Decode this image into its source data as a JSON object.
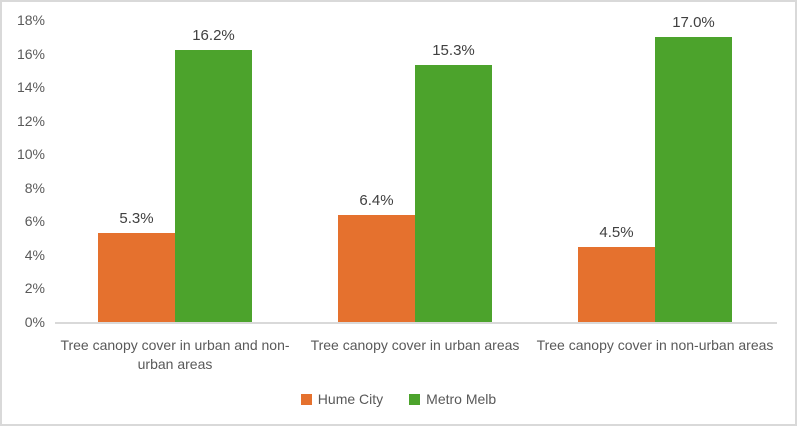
{
  "chart_data": {
    "type": "bar",
    "title": "",
    "xlabel": "",
    "ylabel": "",
    "categories": [
      "Tree canopy cover in urban and non-urban areas",
      "Tree canopy cover in urban areas",
      "Tree canopy cover in non-urban areas"
    ],
    "categories_display": [
      [
        "Tree canopy cover in urban and non-",
        "urban areas"
      ],
      [
        "Tree canopy cover in urban areas"
      ],
      [
        "Tree canopy cover in non-urban areas"
      ]
    ],
    "series": [
      {
        "name": "Hume City",
        "color": "#E5712E",
        "values": [
          5.3,
          6.4,
          4.5
        ],
        "data_labels": [
          "5.3%",
          "6.4%",
          "4.5%"
        ]
      },
      {
        "name": "Metro Melb",
        "color": "#4CA32C",
        "values": [
          16.2,
          15.3,
          17.0
        ],
        "data_labels": [
          "16.2%",
          "15.3%",
          "17.0%"
        ]
      }
    ],
    "ylim": [
      0,
      18
    ],
    "ytick_step": 2,
    "ytick_labels": [
      "0%",
      "2%",
      "4%",
      "6%",
      "8%",
      "10%",
      "12%",
      "14%",
      "16%",
      "18%"
    ],
    "grid": false,
    "legend_position": "bottom"
  },
  "colors": {
    "axis_line": "#D9D9D9",
    "border": "#D9D9D9",
    "axis_text": "#595959",
    "data_label_text": "#404040"
  }
}
